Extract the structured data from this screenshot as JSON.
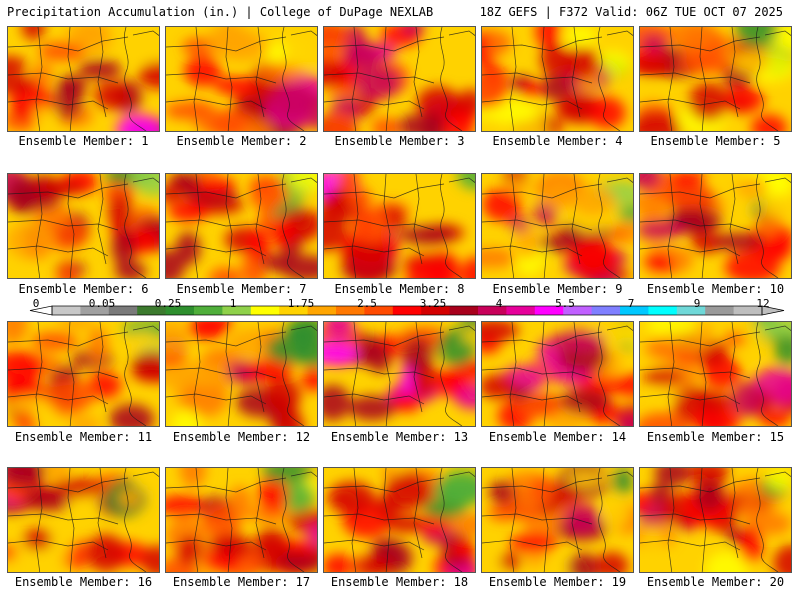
{
  "header": {
    "left": "Precipitation Accumulation (in.) | College of DuPage NEXLAB",
    "right": "18Z GEFS | F372 Valid: 06Z TUE OCT 07 2025"
  },
  "members": [
    {
      "label": "Ensemble Member: 1",
      "intensity": 0.55,
      "wet_southeast": 0.85
    },
    {
      "label": "Ensemble Member: 2",
      "intensity": 0.6,
      "wet_southeast": 0.7
    },
    {
      "label": "Ensemble Member: 3",
      "intensity": 0.75,
      "wet_southeast": 0.75
    },
    {
      "label": "Ensemble Member: 4",
      "intensity": 0.45,
      "wet_southeast": 0.4
    },
    {
      "label": "Ensemble Member: 5",
      "intensity": 0.5,
      "wet_southeast": 0.45
    },
    {
      "label": "Ensemble Member: 6",
      "intensity": 0.6,
      "wet_southeast": 0.55
    },
    {
      "label": "Ensemble Member: 7",
      "intensity": 0.6,
      "wet_southeast": 0.45
    },
    {
      "label": "Ensemble Member: 8",
      "intensity": 0.7,
      "wet_southeast": 0.5
    },
    {
      "label": "Ensemble Member: 9",
      "intensity": 0.55,
      "wet_southeast": 0.55
    },
    {
      "label": "Ensemble Member: 10",
      "intensity": 0.55,
      "wet_southeast": 0.35
    },
    {
      "label": "Ensemble Member: 11",
      "intensity": 0.6,
      "wet_southeast": 0.5
    },
    {
      "label": "Ensemble Member: 12",
      "intensity": 0.45,
      "wet_southeast": 0.35
    },
    {
      "label": "Ensemble Member: 13",
      "intensity": 0.7,
      "wet_southeast": 0.85
    },
    {
      "label": "Ensemble Member: 14",
      "intensity": 0.8,
      "wet_southeast": 0.5
    },
    {
      "label": "Ensemble Member: 15",
      "intensity": 0.55,
      "wet_southeast": 0.8
    },
    {
      "label": "Ensemble Member: 16",
      "intensity": 0.6,
      "wet_southeast": 0.4
    },
    {
      "label": "Ensemble Member: 17",
      "intensity": 0.55,
      "wet_southeast": 0.65
    },
    {
      "label": "Ensemble Member: 18",
      "intensity": 0.6,
      "wet_southeast": 0.9
    },
    {
      "label": "Ensemble Member: 19",
      "intensity": 0.6,
      "wet_southeast": 0.45
    },
    {
      "label": "Ensemble Member: 20",
      "intensity": 0.5,
      "wet_southeast": 0.45
    }
  ],
  "colorbar": {
    "tick_labels": [
      "0",
      "0.05",
      "0.25",
      "1",
      "1.75",
      "2.5",
      "3.25",
      "4",
      "5.5",
      "7",
      "9",
      "12"
    ],
    "colors": [
      "#c8c8c8",
      "#a0a0a0",
      "#7a7a7a",
      "#3c7a2e",
      "#2e8f2e",
      "#4fae3a",
      "#8fd14a",
      "#ffff00",
      "#ffd200",
      "#ffa500",
      "#ff7800",
      "#ff4b00",
      "#ff0000",
      "#d40000",
      "#a8001c",
      "#c8005a",
      "#e6009a",
      "#ff00ff",
      "#c060ff",
      "#7f7fff",
      "#00c8ff",
      "#00ffff",
      "#6fd8d8",
      "#9a9a9a",
      "#bebebe"
    ]
  }
}
